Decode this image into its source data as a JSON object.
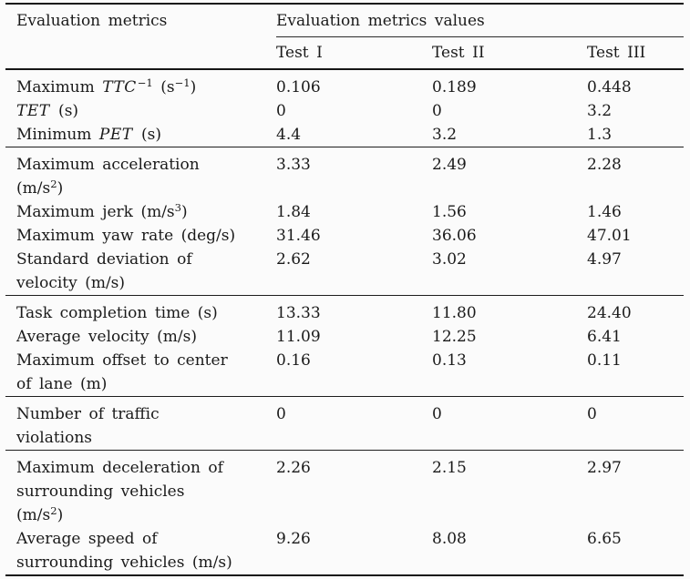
{
  "table": {
    "header": {
      "col1": "Evaluation metrics",
      "group_header": "Evaluation metrics values",
      "columns": [
        "Test I",
        "Test II",
        "Test III"
      ]
    },
    "groups": [
      {
        "rows": [
          {
            "label_lines": [
              [
                {
                  "t": "Maximum "
                },
                {
                  "t": "TTC",
                  "i": true
                },
                {
                  "t": "−1",
                  "sup": true
                },
                {
                  "t": " (s"
                },
                {
                  "t": "−1",
                  "sup": true
                },
                {
                  "t": ")"
                }
              ]
            ],
            "values": [
              "0.106",
              "0.189",
              "0.448"
            ]
          },
          {
            "label_lines": [
              [
                {
                  "t": "TET",
                  "i": true
                },
                {
                  "t": " (s)"
                }
              ]
            ],
            "values": [
              "0",
              "0",
              "3.2"
            ]
          },
          {
            "label_lines": [
              [
                {
                  "t": "Minimum "
                },
                {
                  "t": "PET",
                  "i": true
                },
                {
                  "t": " (s)"
                }
              ]
            ],
            "values": [
              "4.4",
              "3.2",
              "1.3"
            ]
          }
        ]
      },
      {
        "rows": [
          {
            "label_lines": [
              [
                {
                  "t": "Maximum acceleration"
                }
              ],
              [
                {
                  "t": "(m/s"
                },
                {
                  "t": "2",
                  "sup": true
                },
                {
                  "t": ")"
                }
              ]
            ],
            "values": [
              "3.33",
              "2.49",
              "2.28"
            ]
          },
          {
            "label_lines": [
              [
                {
                  "t": "Maximum jerk (m/s"
                },
                {
                  "t": "3",
                  "sup": true
                },
                {
                  "t": ")"
                }
              ]
            ],
            "values": [
              "1.84",
              "1.56",
              "1.46"
            ]
          },
          {
            "label_lines": [
              [
                {
                  "t": "Maximum yaw rate (deg/s)"
                }
              ]
            ],
            "values": [
              "31.46",
              "36.06",
              "47.01"
            ]
          },
          {
            "label_lines": [
              [
                {
                  "t": "Standard deviation of"
                }
              ],
              [
                {
                  "t": "velocity (m/s)"
                }
              ]
            ],
            "values": [
              "2.62",
              "3.02",
              "4.97"
            ]
          }
        ]
      },
      {
        "rows": [
          {
            "label_lines": [
              [
                {
                  "t": "Task completion time (s)"
                }
              ]
            ],
            "values": [
              "13.33",
              "11.80",
              "24.40"
            ]
          },
          {
            "label_lines": [
              [
                {
                  "t": "Average velocity (m/s)"
                }
              ]
            ],
            "values": [
              "11.09",
              "12.25",
              "6.41"
            ]
          },
          {
            "label_lines": [
              [
                {
                  "t": "Maximum offset to center"
                }
              ],
              [
                {
                  "t": "of lane (m)"
                }
              ]
            ],
            "values": [
              "0.16",
              "0.13",
              "0.11"
            ]
          }
        ]
      },
      {
        "rows": [
          {
            "label_lines": [
              [
                {
                  "t": "Number of traffic"
                }
              ],
              [
                {
                  "t": "violations"
                }
              ]
            ],
            "values": [
              "0",
              "0",
              "0"
            ]
          }
        ]
      },
      {
        "rows": [
          {
            "label_lines": [
              [
                {
                  "t": "Maximum deceleration of"
                }
              ],
              [
                {
                  "t": "surrounding vehicles"
                }
              ],
              [
                {
                  "t": "(m/s"
                },
                {
                  "t": "2",
                  "sup": true
                },
                {
                  "t": ")"
                }
              ]
            ],
            "values": [
              "2.26",
              "2.15",
              "2.97"
            ]
          },
          {
            "label_lines": [
              [
                {
                  "t": "Average speed of"
                }
              ],
              [
                {
                  "t": "surrounding vehicles (m/s)"
                }
              ]
            ],
            "values": [
              "9.26",
              "8.08",
              "6.65"
            ]
          }
        ]
      }
    ],
    "colors": {
      "background": "#fbfbfb",
      "text": "#1a1a1a",
      "rule": "#161616"
    }
  }
}
